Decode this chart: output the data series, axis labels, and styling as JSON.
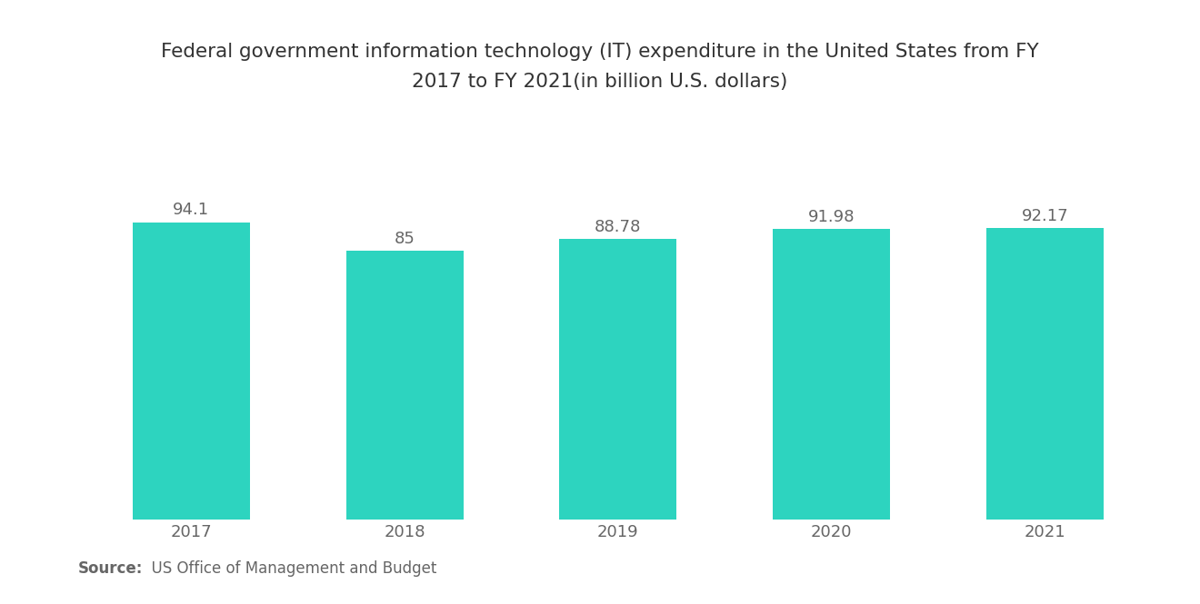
{
  "title_line1": "Federal government information technology (IT) expenditure in the United States from FY",
  "title_line2": "2017 to FY 2021(in billion U.S. dollars)",
  "categories": [
    "2017",
    "2018",
    "2019",
    "2020",
    "2021"
  ],
  "values": [
    94.1,
    85,
    88.78,
    91.98,
    92.17
  ],
  "value_labels": [
    "94.1",
    "85",
    "88.78",
    "91.98",
    "92.17"
  ],
  "bar_color": "#2DD4BF",
  "label_color": "#666666",
  "title_color": "#333333",
  "background_color": "#ffffff",
  "source_bold": "Source:",
  "source_normal": "  US Office of Management and Budget",
  "bar_width": 0.55,
  "ylim": [
    0,
    130
  ],
  "title_fontsize": 15.5,
  "label_fontsize": 13,
  "tick_fontsize": 13,
  "source_fontsize": 12
}
